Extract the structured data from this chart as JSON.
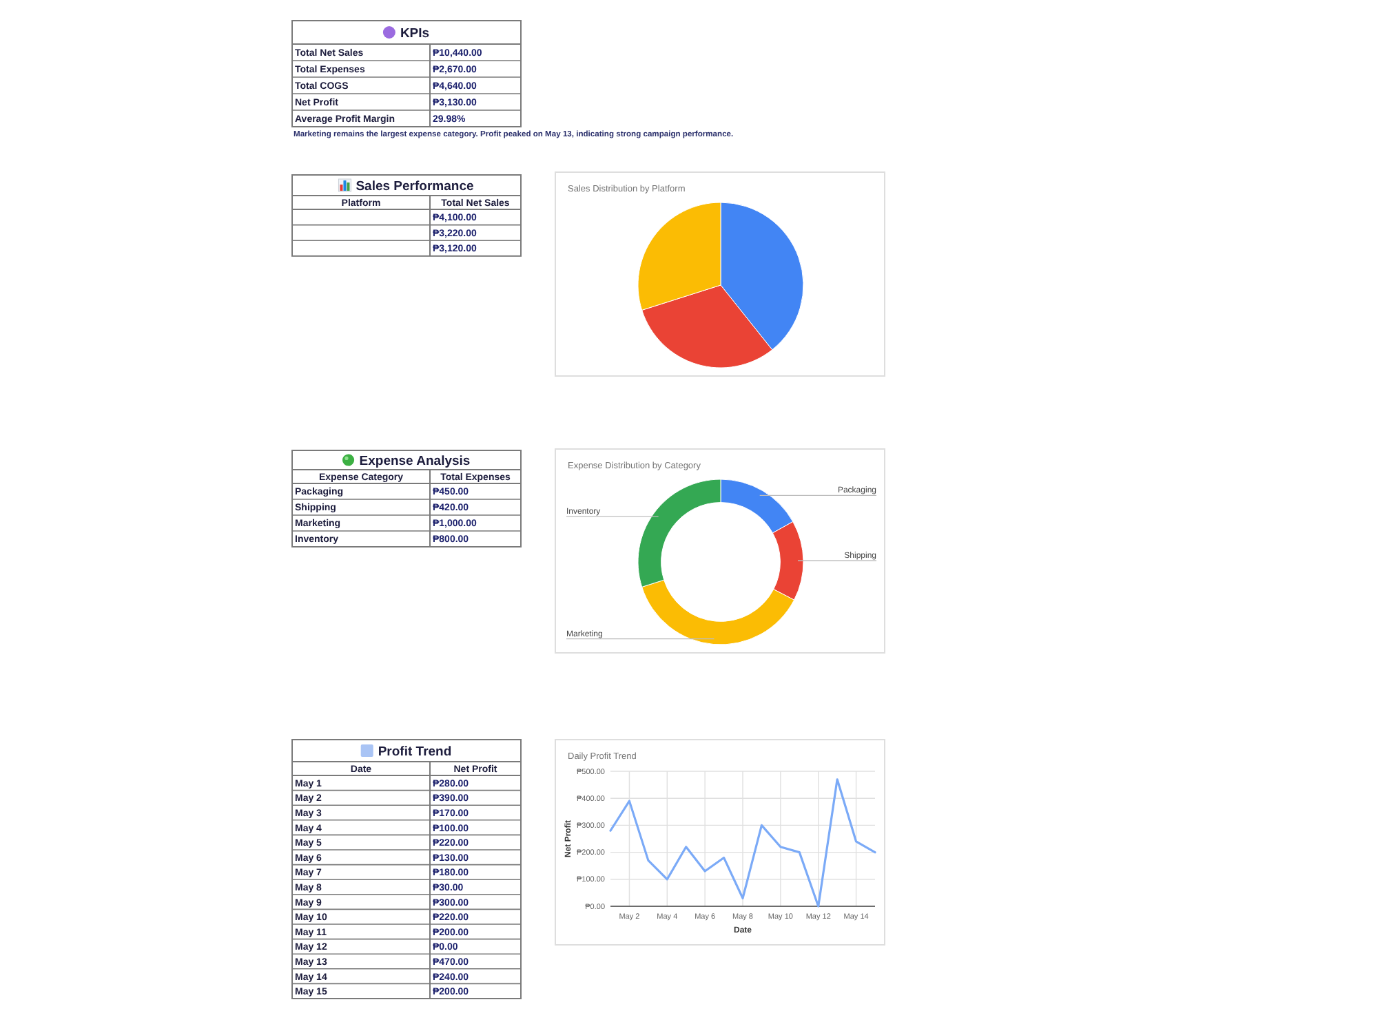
{
  "chart_data": [
    {
      "type": "other",
      "title": "KPIs",
      "categories": [
        "Total Net Sales",
        "Total Expenses",
        "Total COGS",
        "Net Profit",
        "Average Profit Margin"
      ],
      "values": [
        10440,
        2670,
        4640,
        3130,
        29.98
      ],
      "value_labels": [
        "₱10,440.00",
        "₱2,670.00",
        "₱4,640.00",
        "₱3,130.00",
        "29.98%"
      ],
      "annotations": [
        "Marketing remains the largest expense category. Profit peaked on May 13, indicating strong campaign performance."
      ]
    },
    {
      "type": "other",
      "title": "Sales Performance",
      "xlabel": "Platform",
      "ylabel": "Total Net Sales",
      "categories": [
        null,
        null,
        null
      ],
      "values": [
        4100,
        3220,
        3120
      ],
      "value_labels": [
        "₱4,100.00",
        "₱3,220.00",
        "₱3,120.00"
      ]
    },
    {
      "type": "pie",
      "title": "Sales Distribution by Platform",
      "categories": [
        null,
        null,
        null
      ],
      "values": [
        39.3,
        30.8,
        29.9
      ],
      "colors": [
        "#4285f4",
        "#ea4335",
        "#fbbc04"
      ]
    },
    {
      "type": "other",
      "title": "Expense Analysis",
      "xlabel": "Expense Category",
      "ylabel": "Total Expenses",
      "categories": [
        "Packaging",
        "Shipping",
        "Marketing",
        "Inventory"
      ],
      "values": [
        450,
        420,
        1000,
        800
      ],
      "value_labels": [
        "₱450.00",
        "₱420.00",
        "₱1,000.00",
        "₱800.00"
      ]
    },
    {
      "type": "donut",
      "title": "Expense Distribution by Category",
      "categories": [
        "Packaging",
        "Shipping",
        "Marketing",
        "Inventory"
      ],
      "values": [
        16.9,
        15.7,
        37.5,
        29.9
      ],
      "colors": [
        "#4285f4",
        "#ea4335",
        "#fbbc04",
        "#34a853"
      ]
    },
    {
      "type": "other",
      "title": "Profit Trend",
      "xlabel": "Date",
      "ylabel": "Net Profit",
      "categories": [
        "May 1",
        "May 2",
        "May 3",
        "May 4",
        "May 5",
        "May 6",
        "May 7",
        "May 8",
        "May 9",
        "May 10",
        "May 11",
        "May 12",
        "May 13",
        "May 14",
        "May 15"
      ],
      "values": [
        280,
        390,
        170,
        100,
        220,
        130,
        180,
        30,
        300,
        220,
        200,
        0,
        470,
        240,
        200
      ],
      "value_labels": [
        "₱280.00",
        "₱390.00",
        "₱170.00",
        "₱100.00",
        "₱220.00",
        "₱130.00",
        "₱180.00",
        "₱30.00",
        "₱300.00",
        "₱220.00",
        "₱200.00",
        "₱0.00",
        "₱470.00",
        "₱240.00",
        "₱200.00"
      ]
    },
    {
      "type": "line",
      "title": "Daily Profit Trend",
      "xlabel": "Date",
      "ylabel": "Net Profit",
      "categories": [
        null,
        "May 2",
        null,
        "May 4",
        null,
        "May 6",
        null,
        "May 8",
        null,
        "May 10",
        null,
        "May 12",
        null,
        "May 14",
        null
      ],
      "series": [
        {
          "color": "#7baaf7",
          "values": [
            280,
            390,
            170,
            100,
            220,
            130,
            180,
            30,
            300,
            220,
            200,
            0,
            470,
            240,
            200
          ]
        }
      ],
      "ylim": [
        0,
        500
      ],
      "yticks": [
        {
          "value": 0,
          "label": "₱0.00"
        },
        {
          "value": 100,
          "label": "₱100.00"
        },
        {
          "value": 200,
          "label": "₱200.00"
        },
        {
          "value": 300,
          "label": "₱300.00"
        },
        {
          "value": 400,
          "label": "₱400.00"
        },
        {
          "value": 500,
          "label": "₱500.00"
        }
      ],
      "grid": true
    }
  ]
}
